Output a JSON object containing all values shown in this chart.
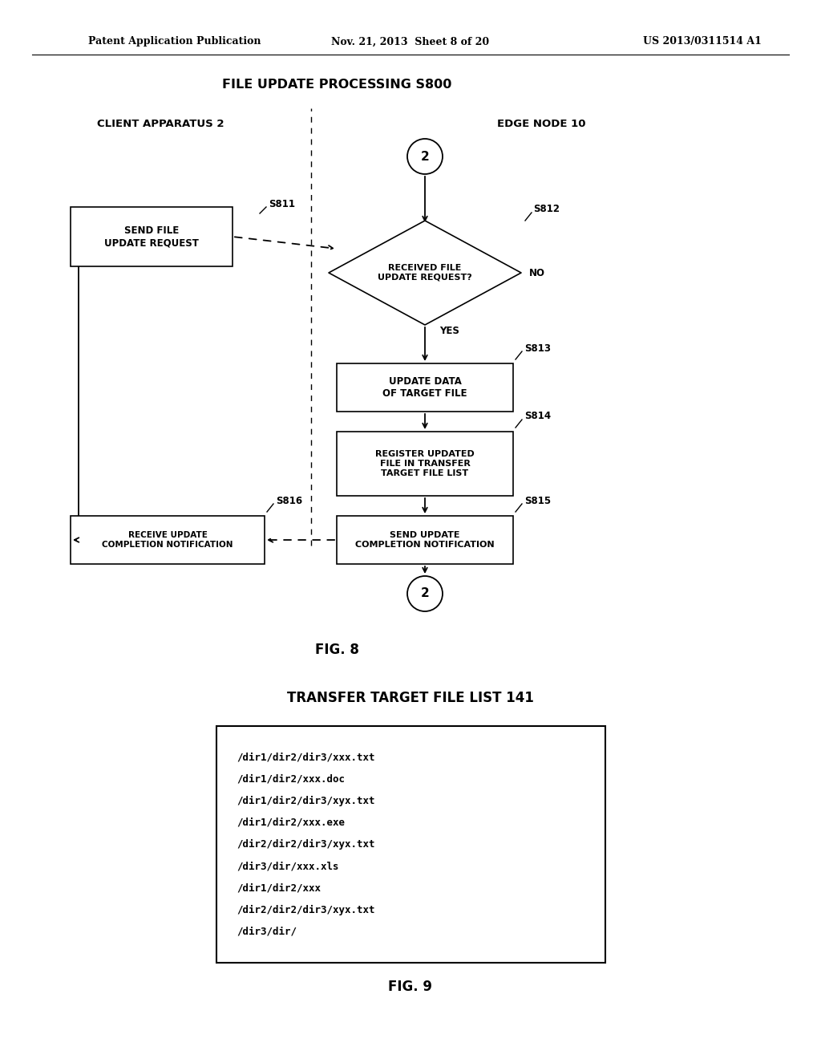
{
  "header_left": "Patent Application Publication",
  "header_mid": "Nov. 21, 2013  Sheet 8 of 20",
  "header_right": "US 2013/0311514 A1",
  "fig8_title": "FILE UPDATE PROCESSING S800",
  "fig8_label": "FIG. 8",
  "fig9_title": "TRANSFER TARGET FILE LIST 141",
  "fig9_label": "FIG. 9",
  "client_label": "CLIENT APPARATUS 2",
  "edge_label": "EDGE NODE 10",
  "file_list": [
    "/dir1/dir2/dir3/xxx.txt",
    "/dir1/dir2/xxx.doc",
    "/dir1/dir2/dir3/xyx.txt",
    "/dir1/dir2/xxx.exe",
    "/dir2/dir2/dir3/xyx.txt",
    "/dir3/dir/xxx.xls",
    "/dir1/dir2/xxx",
    "/dir2/dir2/dir3/xyx.txt",
    "/dir3/dir/"
  ],
  "bg_color": "#ffffff",
  "line_color": "#000000"
}
